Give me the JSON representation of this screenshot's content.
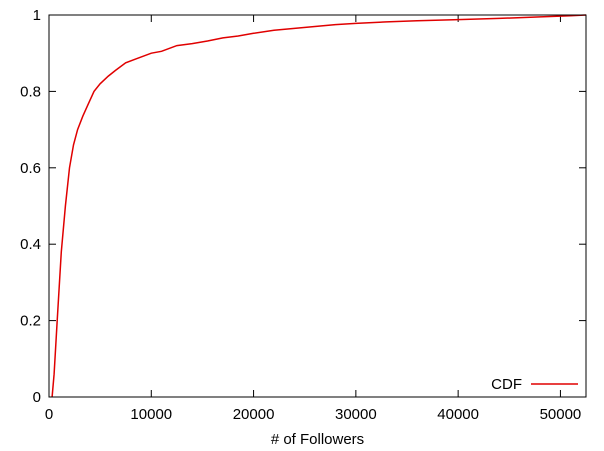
{
  "chart_data": {
    "type": "line",
    "title": "",
    "xlabel": "# of Followers",
    "ylabel": "",
    "xlim": [
      0,
      52500
    ],
    "ylim": [
      0,
      1
    ],
    "x_ticks": [
      0,
      10000,
      20000,
      30000,
      40000,
      50000
    ],
    "x_tick_labels": [
      "0",
      "10000",
      "20000",
      "30000",
      "40000",
      "50000"
    ],
    "y_ticks": [
      0,
      0.2,
      0.4,
      0.6,
      0.8,
      1
    ],
    "y_tick_labels": [
      "0",
      "0.2",
      "0.4",
      "0.6",
      "0.8",
      "1"
    ],
    "grid": false,
    "legend": {
      "position": "bottom-right"
    },
    "series": [
      {
        "name": "CDF",
        "color": "#e00000",
        "x": [
          300,
          500,
          800,
          1200,
          1600,
          2000,
          2400,
          2800,
          3300,
          3800,
          4400,
          5000,
          5800,
          6500,
          7500,
          8500,
          10000,
          11000,
          12500,
          14000,
          15500,
          17000,
          18500,
          20000,
          22000,
          24000,
          26000,
          28000,
          30000,
          33000,
          36000,
          40000,
          44000,
          48000,
          51000,
          52500
        ],
        "values": [
          0.0,
          0.06,
          0.2,
          0.38,
          0.5,
          0.6,
          0.66,
          0.7,
          0.735,
          0.765,
          0.8,
          0.82,
          0.84,
          0.855,
          0.875,
          0.885,
          0.9,
          0.905,
          0.92,
          0.925,
          0.932,
          0.94,
          0.945,
          0.952,
          0.96,
          0.965,
          0.97,
          0.975,
          0.978,
          0.982,
          0.985,
          0.988,
          0.991,
          0.995,
          0.998,
          1.0
        ]
      }
    ]
  }
}
